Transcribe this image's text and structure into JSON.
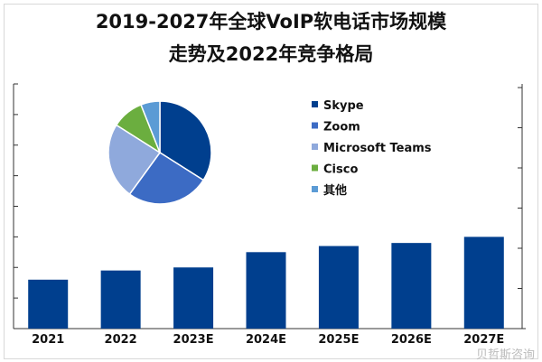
{
  "title_line1": "2019-2027年全球VoIP软电话市场规模",
  "title_line2": "走势及2022年竞争格局",
  "watermark": "贝哲斯咨询",
  "chart_data": [
    {
      "type": "bar",
      "categories": [
        "2021",
        "2022",
        "2023E",
        "2024E",
        "2025E",
        "2026E",
        "2027E"
      ],
      "values": [
        1.6,
        1.9,
        2.0,
        2.5,
        2.7,
        2.8,
        3.0
      ],
      "ylim": [
        0,
        8
      ],
      "ytick_labels_shown": false,
      "color": "#003F8E",
      "grid": false
    },
    {
      "type": "pie",
      "year": "2022",
      "labels": [
        "Skype",
        "Zoom",
        "Microsoft Teams",
        "Cisco",
        "其他"
      ],
      "values": [
        34,
        26,
        24,
        10,
        6
      ],
      "colors": [
        "#003F8E",
        "#3C6BC4",
        "#8FA9DC",
        "#6BAE3F",
        "#5B9BD5"
      ],
      "legend_placement": "right"
    }
  ]
}
